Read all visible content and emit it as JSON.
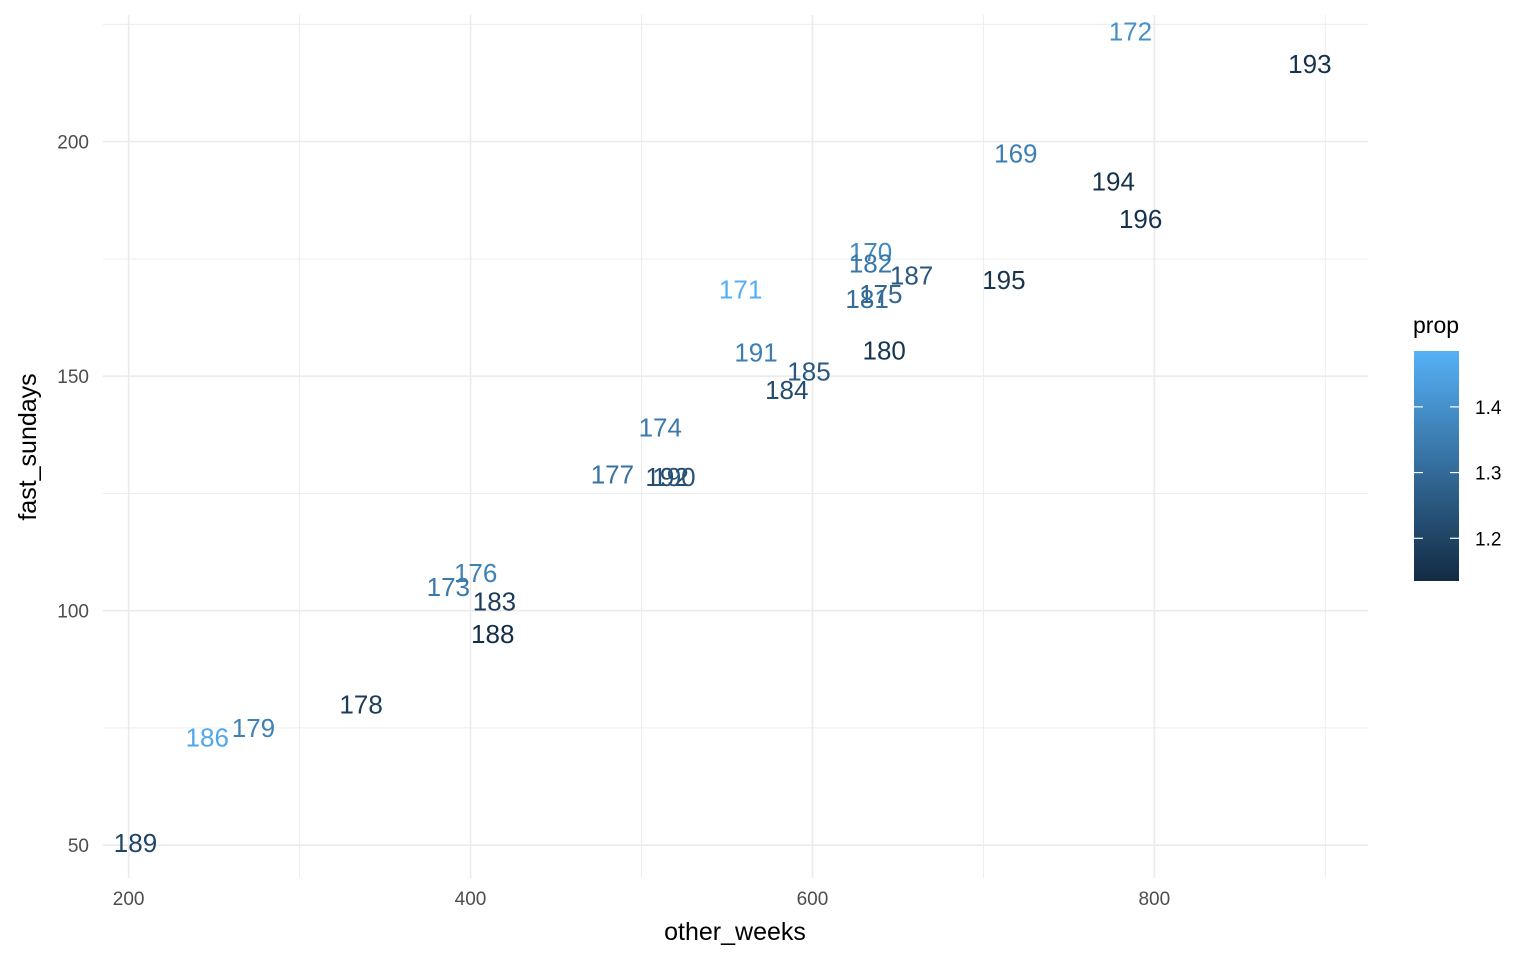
{
  "chart_data": {
    "type": "scatter",
    "geom": "text",
    "xlabel": "other_weeks",
    "ylabel": "fast_sundays",
    "xlim": [
      185,
      925
    ],
    "ylim": [
      43,
      227
    ],
    "x_ticks": [
      200,
      400,
      600,
      800
    ],
    "y_ticks": [
      50,
      100,
      150,
      200
    ],
    "grid": true,
    "legend": {
      "title": "prop",
      "placement": "right",
      "type": "colorbar",
      "range": [
        1.135,
        1.485
      ],
      "ticks": [
        "1.2",
        "1.3",
        "1.4"
      ],
      "tick_values": [
        1.2,
        1.3,
        1.4
      ],
      "color_low": "#132B43",
      "color_high": "#56B1F7"
    },
    "points": [
      {
        "label": "172",
        "x": 786,
        "y": 223.5,
        "prop": 1.4
      },
      {
        "label": "193",
        "x": 891,
        "y": 216.5,
        "prop": 1.15
      },
      {
        "label": "169",
        "x": 719,
        "y": 197.5,
        "prop": 1.35
      },
      {
        "label": "194",
        "x": 776,
        "y": 191.5,
        "prop": 1.15
      },
      {
        "label": "196",
        "x": 792,
        "y": 183.5,
        "prop": 1.15
      },
      {
        "label": "170",
        "x": 634,
        "y": 176.5,
        "prop": 1.38
      },
      {
        "label": "182",
        "x": 634,
        "y": 174.0,
        "prop": 1.33
      },
      {
        "label": "187",
        "x": 658,
        "y": 171.5,
        "prop": 1.25
      },
      {
        "label": "195",
        "x": 712,
        "y": 170.5,
        "prop": 1.16
      },
      {
        "label": "171",
        "x": 558,
        "y": 168.5,
        "prop": 1.48
      },
      {
        "label": "175",
        "x": 640,
        "y": 167.5,
        "prop": 1.29
      },
      {
        "label": "181",
        "x": 632,
        "y": 166.5,
        "prop": 1.31
      },
      {
        "label": "180",
        "x": 642,
        "y": 155.5,
        "prop": 1.16
      },
      {
        "label": "191",
        "x": 567,
        "y": 155.0,
        "prop": 1.35
      },
      {
        "label": "185",
        "x": 598,
        "y": 151.0,
        "prop": 1.25
      },
      {
        "label": "184",
        "x": 585,
        "y": 147.0,
        "prop": 1.22
      },
      {
        "label": "174",
        "x": 511,
        "y": 139.0,
        "prop": 1.34
      },
      {
        "label": "177",
        "x": 483,
        "y": 129.0,
        "prop": 1.32
      },
      {
        "label": "192",
        "x": 515,
        "y": 128.5,
        "prop": 1.22
      },
      {
        "label": "190",
        "x": 519,
        "y": 128.5,
        "prop": 1.24
      },
      {
        "label": "176",
        "x": 403,
        "y": 108.0,
        "prop": 1.36
      },
      {
        "label": "173",
        "x": 387,
        "y": 105.0,
        "prop": 1.34
      },
      {
        "label": "183",
        "x": 414,
        "y": 102.0,
        "prop": 1.18
      },
      {
        "label": "188",
        "x": 413,
        "y": 95.0,
        "prop": 1.14
      },
      {
        "label": "178",
        "x": 336,
        "y": 80.0,
        "prop": 1.18
      },
      {
        "label": "179",
        "x": 273,
        "y": 75.0,
        "prop": 1.36
      },
      {
        "label": "186",
        "x": 246,
        "y": 73.0,
        "prop": 1.46
      },
      {
        "label": "189",
        "x": 204,
        "y": 50.5,
        "prop": 1.2
      }
    ]
  }
}
